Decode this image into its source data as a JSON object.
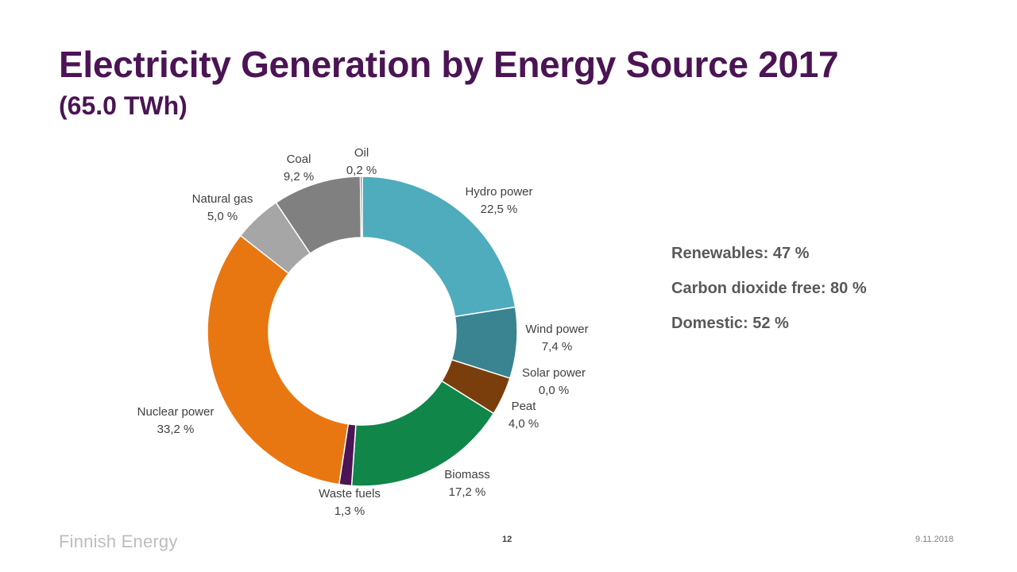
{
  "page": {
    "title": "Electricity Generation by Energy Source 2017",
    "subtitle": "(65.0 TWh)",
    "facts": [
      "Renewables: 47 %",
      "Carbon dioxide free: 80 %",
      "Domestic: 52 %"
    ],
    "logo": "Finnish Energy",
    "page_number": "12",
    "date": "9.11.2018"
  },
  "chart_data": {
    "type": "pie",
    "subtype": "donut",
    "title": "Electricity Generation by Energy Source 2017",
    "unit": "%",
    "slices": [
      {
        "name": "Hydro power",
        "value": 22.5,
        "label": "22,5 %",
        "color": "#4eacbc"
      },
      {
        "name": "Wind power",
        "value": 7.4,
        "label": "7,4 %",
        "color": "#3a8390"
      },
      {
        "name": "Solar power",
        "value": 0.0,
        "label": "0,0 %",
        "color": "#e9c71f"
      },
      {
        "name": "Peat",
        "value": 4.0,
        "label": "4,0 %",
        "color": "#7a3e0c"
      },
      {
        "name": "Biomass",
        "value": 17.2,
        "label": "17,2 %",
        "color": "#108649"
      },
      {
        "name": "Waste fuels",
        "value": 1.3,
        "label": "1,3 %",
        "color": "#4b1454"
      },
      {
        "name": "Nuclear power",
        "value": 33.2,
        "label": "33,2 %",
        "color": "#e87711"
      },
      {
        "name": "Natural gas",
        "value": 5.0,
        "label": "5,0 %",
        "color": "#a6a6a6"
      },
      {
        "name": "Coal",
        "value": 9.2,
        "label": "9,2 %",
        "color": "#808080"
      },
      {
        "name": "Oil",
        "value": 0.2,
        "label": "0,2 %",
        "color": "#595959"
      }
    ]
  }
}
